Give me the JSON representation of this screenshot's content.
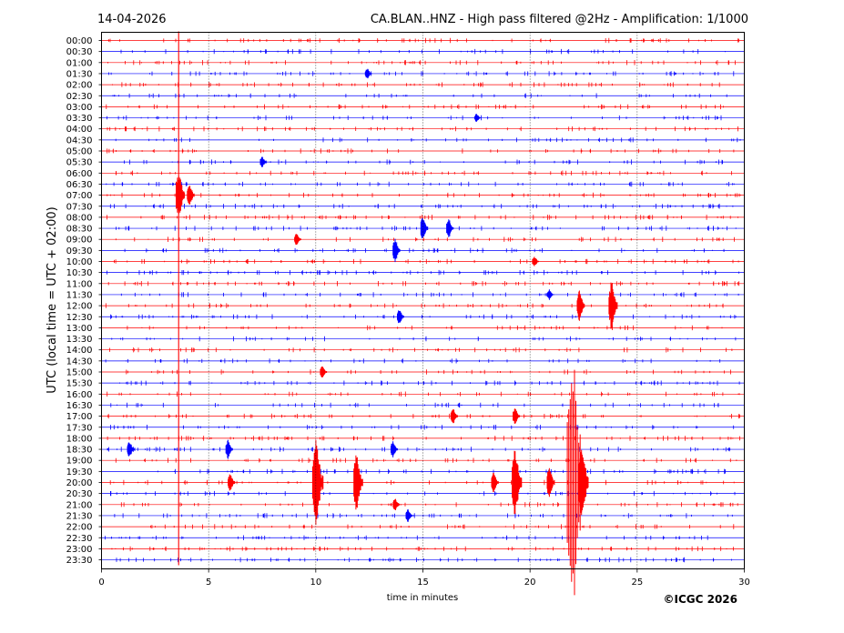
{
  "header": {
    "date": "14-04-2026",
    "title": "CA.BLAN..HNZ - High pass filtered @2Hz - Amplification: 1/1000"
  },
  "footer": {
    "copyright": "©ICGC 2026"
  },
  "chart_data": {
    "type": "line",
    "subtype": "helicorder",
    "xlabel": "time in minutes",
    "ylabel": "UTC (local time = UTC + 02:00)",
    "xlim": [
      0,
      30
    ],
    "xticks": [
      0,
      5,
      10,
      15,
      20,
      25,
      30
    ],
    "grid": "vertical dotted every 5 minutes",
    "trace_colors": [
      "#ff0000",
      "#0000ff"
    ],
    "row_labels": [
      "00:00",
      "00:30",
      "01:00",
      "01:30",
      "02:00",
      "02:30",
      "03:00",
      "03:30",
      "04:00",
      "04:30",
      "05:00",
      "05:30",
      "06:00",
      "06:30",
      "07:00",
      "07:30",
      "08:00",
      "08:30",
      "09:00",
      "09:30",
      "10:00",
      "10:30",
      "11:00",
      "11:30",
      "12:00",
      "12:30",
      "13:00",
      "13:30",
      "14:00",
      "14:30",
      "15:00",
      "15:30",
      "16:00",
      "16:30",
      "17:00",
      "17:30",
      "18:00",
      "18:30",
      "19:00",
      "19:30",
      "20:00",
      "20:30",
      "21:00",
      "21:30",
      "22:00",
      "22:30",
      "23:00",
      "23:30"
    ],
    "events": [
      {
        "row": "01:30",
        "minute": 12.4,
        "amplitude": 0.5
      },
      {
        "row": "03:30",
        "minute": 17.5,
        "amplitude": 0.4
      },
      {
        "row": "05:30",
        "minute": 7.5,
        "amplitude": 0.5
      },
      {
        "row": "07:00",
        "minute": 3.6,
        "amplitude": 2.5
      },
      {
        "row": "07:00",
        "minute": 4.1,
        "amplitude": 1.2
      },
      {
        "row": "08:30",
        "minute": 15.0,
        "amplitude": 1.2
      },
      {
        "row": "08:30",
        "minute": 16.2,
        "amplitude": 1.0
      },
      {
        "row": "09:00",
        "minute": 9.1,
        "amplitude": 0.6
      },
      {
        "row": "09:30",
        "minute": 13.7,
        "amplitude": 1.2
      },
      {
        "row": "10:00",
        "minute": 20.2,
        "amplitude": 0.5
      },
      {
        "row": "11:30",
        "minute": 20.9,
        "amplitude": 0.5
      },
      {
        "row": "12:00",
        "minute": 22.3,
        "amplitude": 1.5
      },
      {
        "row": "12:00",
        "minute": 23.8,
        "amplitude": 2.5
      },
      {
        "row": "12:30",
        "minute": 13.9,
        "amplitude": 0.8
      },
      {
        "row": "15:00",
        "minute": 10.3,
        "amplitude": 0.6
      },
      {
        "row": "17:00",
        "minute": 16.4,
        "amplitude": 0.8
      },
      {
        "row": "17:00",
        "minute": 19.3,
        "amplitude": 0.8
      },
      {
        "row": "18:30",
        "minute": 1.3,
        "amplitude": 0.8
      },
      {
        "row": "18:30",
        "minute": 5.9,
        "amplitude": 0.9
      },
      {
        "row": "18:30",
        "minute": 13.6,
        "amplitude": 0.8
      },
      {
        "row": "20:00",
        "minute": 6.0,
        "amplitude": 0.9
      },
      {
        "row": "20:00",
        "minute": 10.0,
        "amplitude": 4.5
      },
      {
        "row": "20:00",
        "minute": 11.9,
        "amplitude": 3.0
      },
      {
        "row": "20:00",
        "minute": 18.3,
        "amplitude": 1.0
      },
      {
        "row": "20:00",
        "minute": 19.3,
        "amplitude": 3.5
      },
      {
        "row": "20:00",
        "minute": 20.9,
        "amplitude": 1.6
      },
      {
        "row": "20:00",
        "minute": 22.0,
        "amplitude": 12.0
      },
      {
        "row": "20:00",
        "minute": 22.4,
        "amplitude": 3.8
      },
      {
        "row": "21:00",
        "minute": 13.7,
        "amplitude": 0.6
      },
      {
        "row": "21:30",
        "minute": 14.3,
        "amplitude": 0.6
      }
    ],
    "spikes": [
      {
        "minute": 3.6,
        "from_row": "00:00",
        "to_row": "23:30"
      }
    ]
  }
}
